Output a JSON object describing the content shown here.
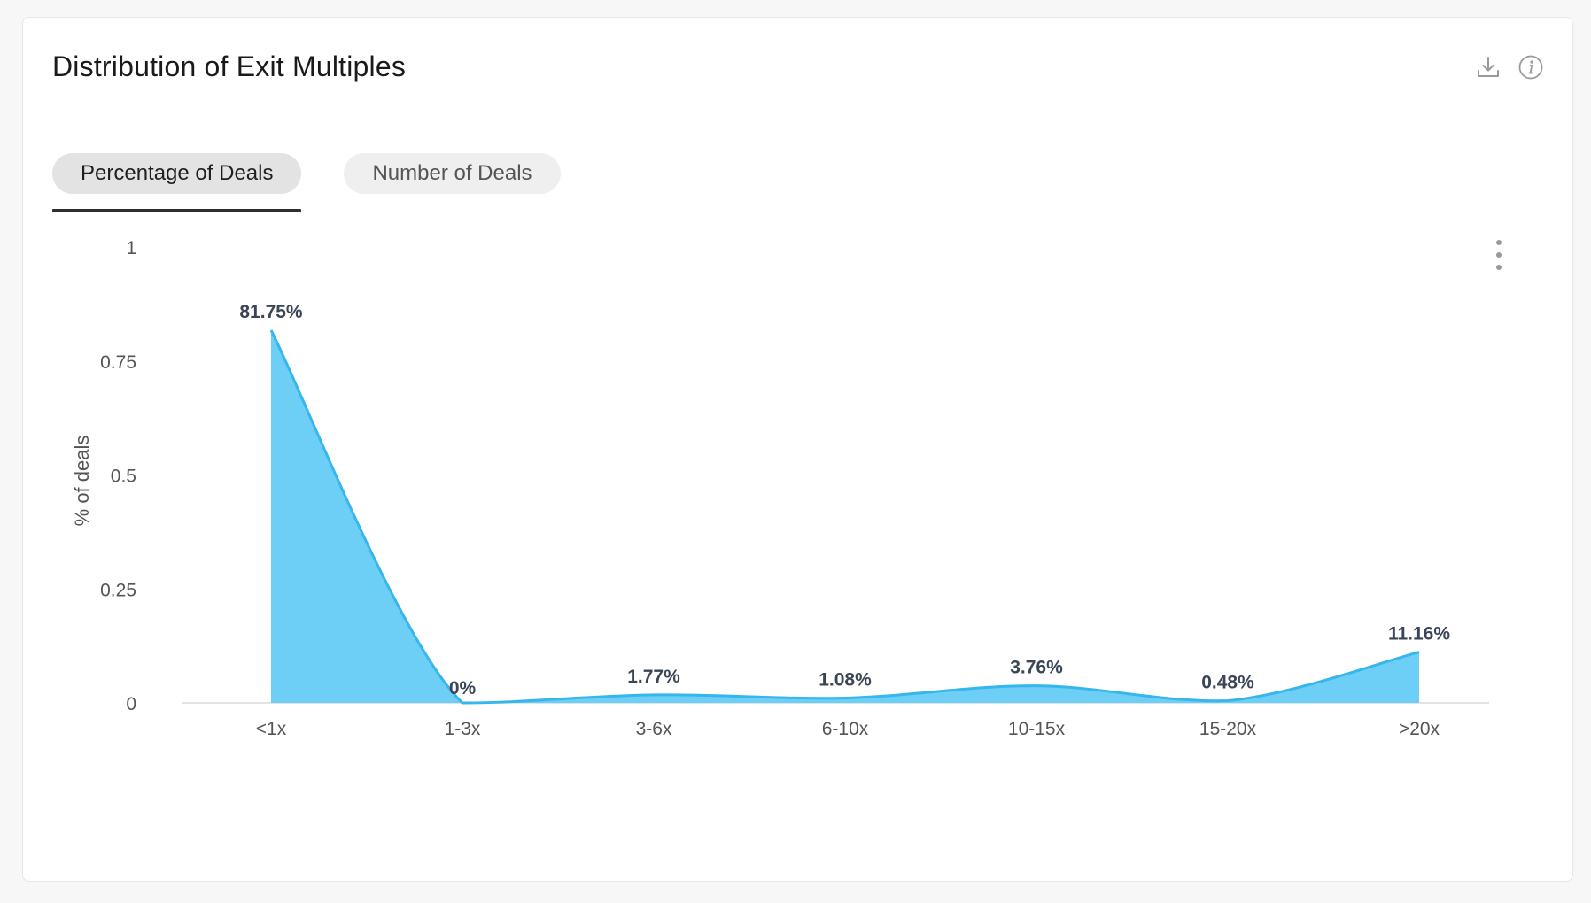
{
  "header": {
    "title": "Distribution of Exit Multiples",
    "icons": [
      "download-icon",
      "info-icon"
    ]
  },
  "tabs": [
    {
      "label": "Percentage of Deals",
      "active": true
    },
    {
      "label": "Number of Deals",
      "active": false
    }
  ],
  "chart_data": {
    "type": "area",
    "categories": [
      "<1x",
      "1-3x",
      "3-6x",
      "6-10x",
      "10-15x",
      "15-20x",
      ">20x"
    ],
    "values": [
      0.8175,
      0.0,
      0.0177,
      0.0108,
      0.0376,
      0.0048,
      0.1116
    ],
    "data_labels": [
      "81.75%",
      "0%",
      "1.77%",
      "1.08%",
      "3.76%",
      "0.48%",
      "11.16%"
    ],
    "ylabel": "% of deals",
    "ylim": [
      0,
      1
    ],
    "yticks": [
      0,
      0.25,
      0.5,
      0.75,
      1
    ],
    "ytick_labels": [
      "0",
      "0.25",
      "0.5",
      "0.75",
      "1"
    ],
    "colors": {
      "fill": "#6dcff6",
      "line": "#35b6ec"
    }
  }
}
